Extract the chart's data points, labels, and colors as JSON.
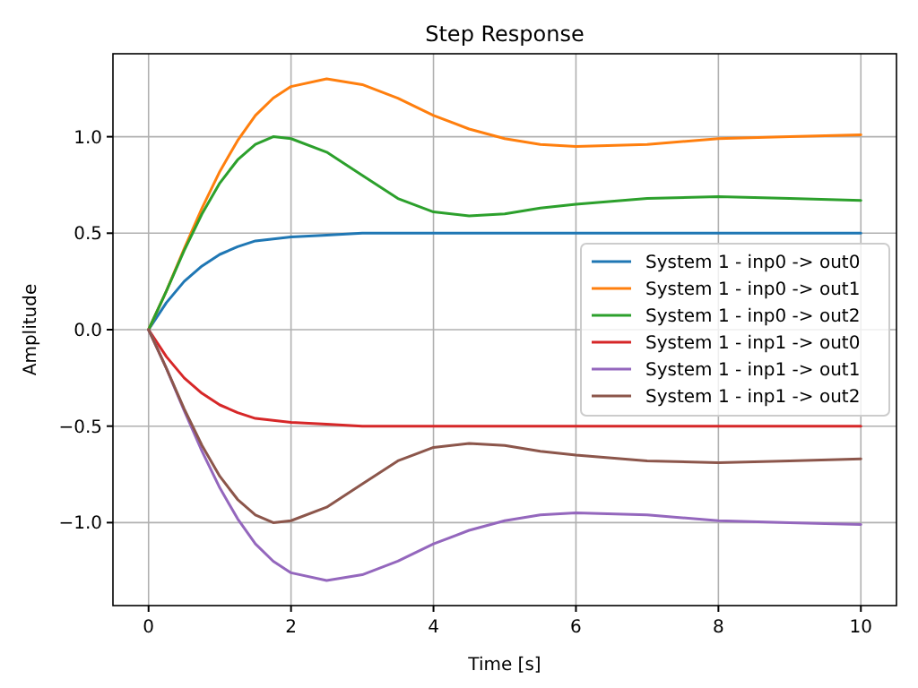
{
  "chart_data": {
    "type": "line",
    "title": "Step Response",
    "xlabel": "Time [s]",
    "ylabel": "Amplitude",
    "x": [
      0,
      0.25,
      0.5,
      0.75,
      1,
      1.25,
      1.5,
      1.75,
      2,
      2.5,
      3,
      3.5,
      4,
      4.5,
      5,
      5.5,
      6,
      7,
      8,
      9,
      10
    ],
    "series": [
      {
        "name": "System 1 - inp0 -> out0",
        "color": "#1f77b4",
        "values": [
          0,
          0.14,
          0.25,
          0.33,
          0.39,
          0.43,
          0.46,
          0.47,
          0.48,
          0.49,
          0.5,
          0.5,
          0.5,
          0.5,
          0.5,
          0.5,
          0.5,
          0.5,
          0.5,
          0.5,
          0.5
        ]
      },
      {
        "name": "System 1 - inp0 -> out1",
        "color": "#ff7f0e",
        "values": [
          0,
          0.2,
          0.42,
          0.63,
          0.82,
          0.98,
          1.11,
          1.2,
          1.26,
          1.3,
          1.27,
          1.2,
          1.11,
          1.04,
          0.99,
          0.96,
          0.95,
          0.96,
          0.99,
          1.0,
          1.01
        ]
      },
      {
        "name": "System 1 - inp0 -> out2",
        "color": "#2ca02c",
        "values": [
          0,
          0.2,
          0.41,
          0.6,
          0.76,
          0.88,
          0.96,
          1.0,
          0.99,
          0.92,
          0.8,
          0.68,
          0.61,
          0.59,
          0.6,
          0.63,
          0.65,
          0.68,
          0.69,
          0.68,
          0.67
        ]
      },
      {
        "name": "System 1 - inp1 -> out0",
        "color": "#d62728",
        "values": [
          0,
          -0.14,
          -0.25,
          -0.33,
          -0.39,
          -0.43,
          -0.46,
          -0.47,
          -0.48,
          -0.49,
          -0.5,
          -0.5,
          -0.5,
          -0.5,
          -0.5,
          -0.5,
          -0.5,
          -0.5,
          -0.5,
          -0.5,
          -0.5
        ]
      },
      {
        "name": "System 1 - inp1 -> out1",
        "color": "#9467bd",
        "values": [
          0,
          -0.2,
          -0.42,
          -0.63,
          -0.82,
          -0.98,
          -1.11,
          -1.2,
          -1.26,
          -1.3,
          -1.27,
          -1.2,
          -1.11,
          -1.04,
          -0.99,
          -0.96,
          -0.95,
          -0.96,
          -0.99,
          -1.0,
          -1.01
        ]
      },
      {
        "name": "System 1 - inp1 -> out2",
        "color": "#8c564b",
        "values": [
          0,
          -0.2,
          -0.41,
          -0.6,
          -0.76,
          -0.88,
          -0.96,
          -1.0,
          -0.99,
          -0.92,
          -0.8,
          -0.68,
          -0.61,
          -0.59,
          -0.6,
          -0.63,
          -0.65,
          -0.68,
          -0.69,
          -0.68,
          -0.67
        ]
      }
    ],
    "xlim": [
      -0.5,
      10.5
    ],
    "xticks": [
      0,
      2,
      4,
      6,
      8,
      10
    ],
    "ylim": [
      -1.43,
      1.43
    ],
    "yticks": [
      {
        "value": -1,
        "label": "−1.0"
      },
      {
        "value": -0.5,
        "label": "−0.5"
      },
      {
        "value": 0,
        "label": "0.0"
      },
      {
        "value": 0.5,
        "label": "0.5"
      },
      {
        "value": 1,
        "label": "1.0"
      }
    ],
    "grid": true,
    "legend": "right",
    "line_style": "solid",
    "marker": "none"
  }
}
